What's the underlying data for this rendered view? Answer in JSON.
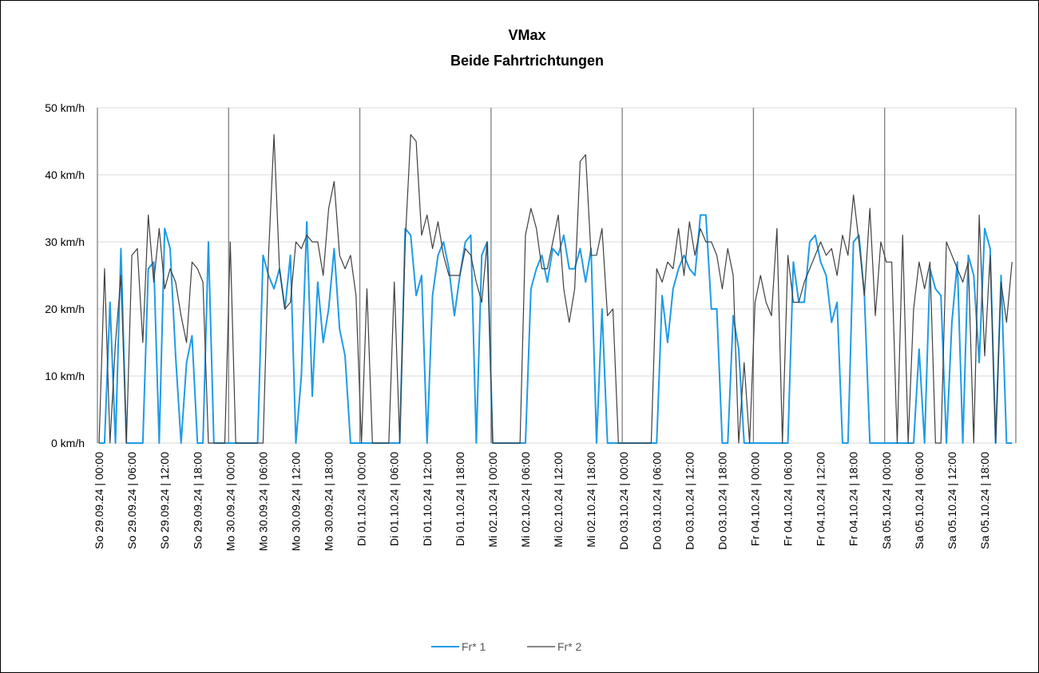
{
  "chart_data": {
    "type": "line",
    "title": "VMax",
    "subtitle": "Beide Fahrtrichtungen",
    "categories": [
      "So 29.09.24 | 00:00",
      null,
      null,
      null,
      null,
      null,
      "So 29.09.24 | 06:00",
      null,
      null,
      null,
      null,
      null,
      "So 29.09.24 | 12:00",
      null,
      null,
      null,
      null,
      null,
      "So 29.09.24 | 18:00",
      null,
      null,
      null,
      null,
      null,
      "Mo 30.09.24 | 00:00",
      null,
      null,
      null,
      null,
      null,
      "Mo 30.09.24 | 06:00",
      null,
      null,
      null,
      null,
      null,
      "Mo 30.09.24 | 12:00",
      null,
      null,
      null,
      null,
      null,
      "Mo 30.09.24 | 18:00",
      null,
      null,
      null,
      null,
      null,
      "Di 01.10.24 | 00:00",
      null,
      null,
      null,
      null,
      null,
      "Di 01.10.24 | 06:00",
      null,
      null,
      null,
      null,
      null,
      "Di 01.10.24 | 12:00",
      null,
      null,
      null,
      null,
      null,
      "Di 01.10.24 | 18:00",
      null,
      null,
      null,
      null,
      null,
      "Mi 02.10.24 | 00:00",
      null,
      null,
      null,
      null,
      null,
      "Mi 02.10.24 | 06:00",
      null,
      null,
      null,
      null,
      null,
      "Mi 02.10.24 | 12:00",
      null,
      null,
      null,
      null,
      null,
      "Mi 02.10.24 | 18:00",
      null,
      null,
      null,
      null,
      null,
      "Do 03.10.24 | 00:00",
      null,
      null,
      null,
      null,
      null,
      "Do 03.10.24 | 06:00",
      null,
      null,
      null,
      null,
      null,
      "Do 03.10.24 | 12:00",
      null,
      null,
      null,
      null,
      null,
      "Do 03.10.24 | 18:00",
      null,
      null,
      null,
      null,
      null,
      "Fr 04.10.24 | 00:00",
      null,
      null,
      null,
      null,
      null,
      "Fr 04.10.24 | 06:00",
      null,
      null,
      null,
      null,
      null,
      "Fr 04.10.24 | 12:00",
      null,
      null,
      null,
      null,
      null,
      "Fr 04.10.24 | 18:00",
      null,
      null,
      null,
      null,
      null,
      "Sa 05.10.24 | 00:00",
      null,
      null,
      null,
      null,
      null,
      "Sa 05.10.24 | 06:00",
      null,
      null,
      null,
      null,
      null,
      "Sa 05.10.24 | 12:00",
      null,
      null,
      null,
      null,
      null,
      "Sa 05.10.24 | 18:00",
      null,
      null,
      null,
      null,
      null
    ],
    "series": [
      {
        "name": "Fr* 1",
        "color": "#1e9be6",
        "values": [
          0,
          0,
          21,
          0,
          29,
          0,
          0,
          0,
          0,
          26,
          27,
          0,
          32,
          29,
          13,
          0,
          12,
          16,
          0,
          0,
          30,
          0,
          0,
          0,
          0,
          0,
          0,
          0,
          0,
          0,
          28,
          25,
          23,
          26,
          20,
          28,
          0,
          10,
          33,
          7,
          24,
          15,
          20,
          29,
          17,
          13,
          0,
          0,
          0,
          0,
          0,
          0,
          0,
          0,
          0,
          0,
          32,
          31,
          22,
          25,
          0,
          22,
          28,
          30,
          26,
          19,
          25,
          30,
          31,
          0,
          28,
          30,
          0,
          0,
          0,
          0,
          0,
          0,
          0,
          23,
          26,
          28,
          24,
          29,
          28,
          31,
          26,
          26,
          29,
          24,
          29,
          0,
          20,
          0,
          0,
          0,
          0,
          0,
          0,
          0,
          0,
          0,
          0,
          22,
          15,
          23,
          26,
          28,
          26,
          25,
          34,
          34,
          20,
          20,
          0,
          0,
          19,
          14,
          0,
          0,
          0,
          0,
          0,
          0,
          0,
          0,
          0,
          27,
          21,
          21,
          30,
          31,
          27,
          25,
          18,
          21,
          0,
          0,
          30,
          31,
          22,
          0,
          0,
          0,
          0,
          0,
          0,
          0,
          0,
          0,
          14,
          0,
          26,
          23,
          22,
          0,
          18,
          27,
          0,
          28,
          25,
          12,
          32,
          29,
          0,
          25,
          0,
          0
        ]
      },
      {
        "name": "Fr* 2",
        "color": "#3f3f3f",
        "values": [
          0,
          26,
          0,
          15,
          25,
          0,
          28,
          29,
          15,
          34,
          24,
          32,
          23,
          26,
          24,
          19,
          15,
          27,
          26,
          24,
          0,
          0,
          0,
          0,
          30,
          0,
          0,
          0,
          0,
          0,
          0,
          28,
          46,
          26,
          20,
          21,
          30,
          29,
          31,
          30,
          30,
          25,
          35,
          39,
          28,
          26,
          28,
          22,
          0,
          23,
          0,
          0,
          0,
          0,
          24,
          0,
          30,
          46,
          45,
          31,
          34,
          29,
          33,
          28,
          25,
          25,
          25,
          29,
          28,
          24,
          21,
          30,
          0,
          0,
          0,
          0,
          0,
          0,
          31,
          35,
          32,
          26,
          26,
          30,
          34,
          23,
          18,
          23,
          42,
          43,
          28,
          28,
          32,
          19,
          20,
          0,
          0,
          0,
          0,
          0,
          0,
          0,
          26,
          24,
          27,
          26,
          32,
          25,
          33,
          28,
          32,
          30,
          30,
          28,
          23,
          29,
          25,
          0,
          12,
          0,
          21,
          25,
          21,
          19,
          32,
          0,
          28,
          21,
          21,
          24,
          26,
          28,
          30,
          28,
          29,
          25,
          31,
          28,
          37,
          30,
          22,
          35,
          19,
          30,
          27,
          27,
          0,
          31,
          0,
          20,
          27,
          23,
          27,
          0,
          0,
          30,
          28,
          26,
          24,
          27,
          0,
          34,
          13,
          28,
          0,
          24,
          18,
          27
        ]
      }
    ],
    "ylim": [
      0,
      50
    ],
    "yticks": [
      {
        "value": 0,
        "label": "0 km/h"
      },
      {
        "value": 10,
        "label": "10 km/h"
      },
      {
        "value": 20,
        "label": "20 km/h"
      },
      {
        "value": 30,
        "label": "30 km/h"
      },
      {
        "value": 40,
        "label": "40 km/h"
      },
      {
        "value": 50,
        "label": "50 km/h"
      }
    ],
    "grid": true,
    "legend": "bottom"
  }
}
